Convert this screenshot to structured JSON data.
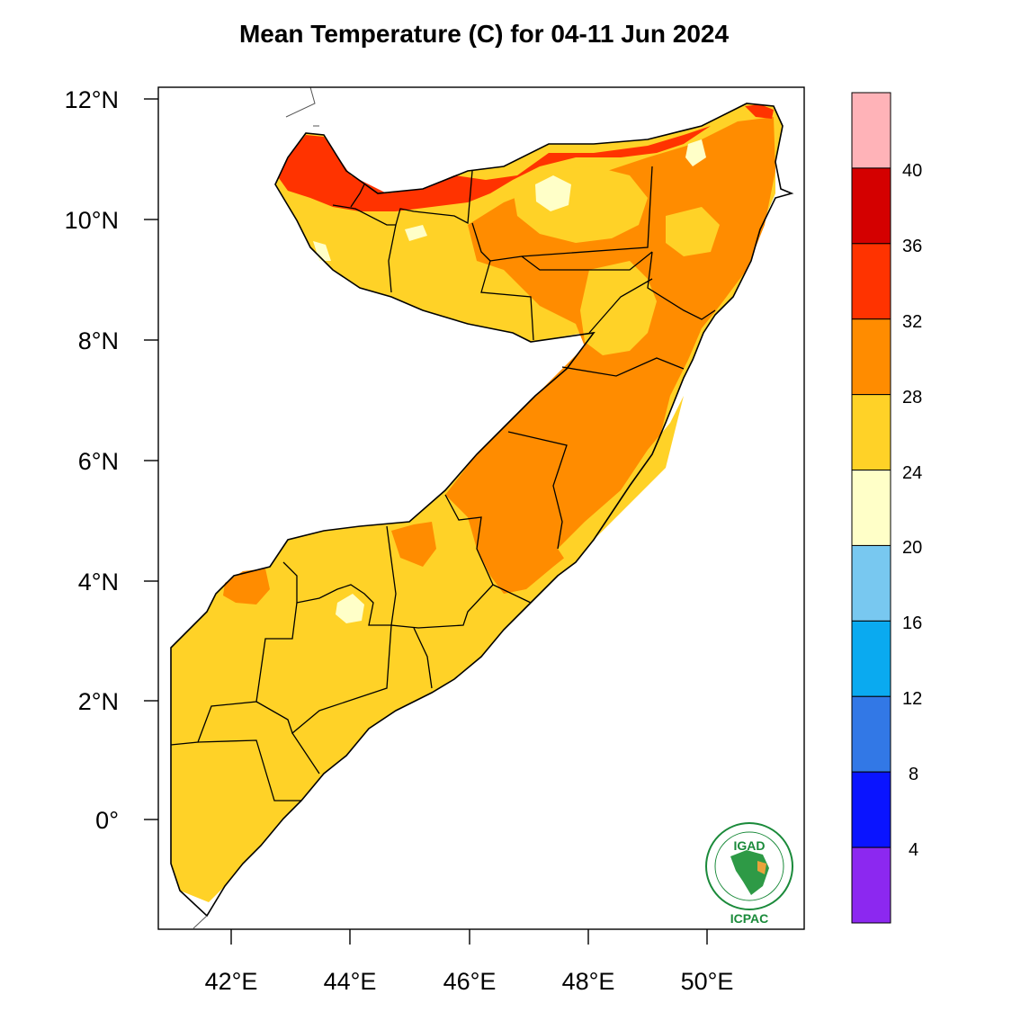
{
  "title": "Mean Temperature (C) for 04-11 Jun 2024",
  "axes": {
    "lat_labels": [
      "12°N",
      "10°N",
      "8°N",
      "6°N",
      "4°N",
      "2°N",
      "0°"
    ],
    "lon_labels": [
      "42°E",
      "44°E",
      "46°E",
      "48°E",
      "50°E"
    ]
  },
  "colorbar": {
    "labels": [
      "40",
      "36",
      "32",
      "28",
      "24",
      "20",
      "16",
      "12",
      "8",
      "4"
    ],
    "colors": [
      "#ffb3b8",
      "#d40000",
      "#ff3300",
      "#ff8c00",
      "#ffd227",
      "#ffffc8",
      "#78c8f0",
      "#0aaaf0",
      "#3278e6",
      "#0a14ff",
      "#8c28f0"
    ]
  },
  "regions": {
    "colors": {
      "hot_red": "#ff3300",
      "orange": "#ff8c00",
      "yellow": "#ffd227",
      "pale": "#ffffc8",
      "deep_red": "#d40000"
    }
  },
  "logo": {
    "top_text": "IGAD",
    "bottom_text": "ICPAC"
  }
}
